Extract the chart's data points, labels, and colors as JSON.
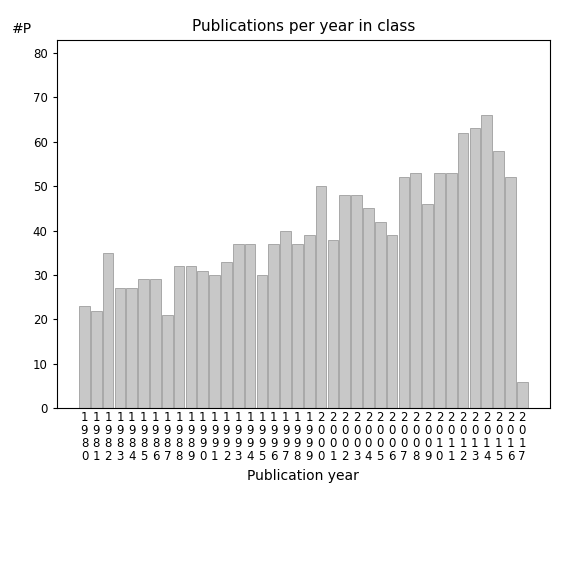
{
  "title": "Publications per year in class",
  "xlabel": "Publication year",
  "ylabel": "#P",
  "years": [
    1980,
    1981,
    1982,
    1983,
    1984,
    1985,
    1986,
    1987,
    1988,
    1989,
    1990,
    1991,
    1992,
    1993,
    1994,
    1995,
    1996,
    1997,
    1998,
    1999,
    2000,
    2001,
    2002,
    2003,
    2004,
    2005,
    2006,
    2007,
    2008,
    2009,
    2010,
    2011,
    2012,
    2013,
    2014,
    2015,
    2016,
    2017
  ],
  "values": [
    23,
    22,
    35,
    27,
    27,
    29,
    29,
    21,
    32,
    32,
    31,
    30,
    33,
    37,
    37,
    30,
    37,
    40,
    37,
    39,
    50,
    38,
    48,
    48,
    45,
    42,
    39,
    52,
    53,
    46,
    53,
    53,
    62,
    63,
    66,
    58,
    52,
    6
  ],
  "bar_color": "#c8c8c8",
  "bar_edgecolor": "#909090",
  "ylim": [
    0,
    83
  ],
  "yticks": [
    0,
    10,
    20,
    30,
    40,
    50,
    60,
    70,
    80
  ],
  "background_color": "#ffffff",
  "title_fontsize": 11,
  "xlabel_fontsize": 10,
  "ylabel_fontsize": 10,
  "tick_fontsize": 8.5
}
